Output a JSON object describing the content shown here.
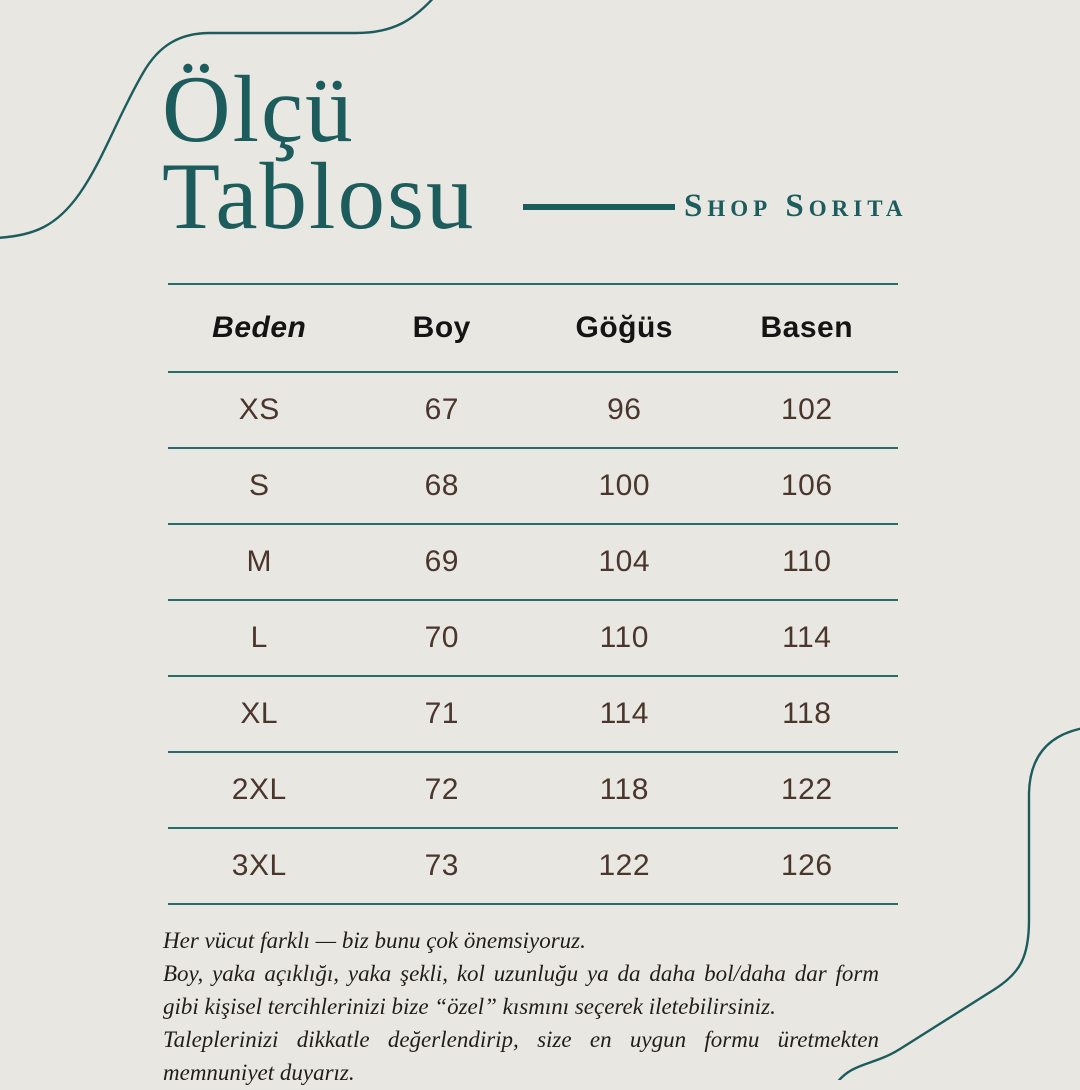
{
  "page": {
    "background_color": "#E9E7E2",
    "accent_color": "#1C5C5E",
    "table_line_color": "#2A6B6C",
    "data_text_color": "#4A362C",
    "header_text_color": "#141414"
  },
  "header": {
    "title_line1": "Ölçü",
    "title_line2": "Tablosu",
    "brand": "Shop Sorita"
  },
  "table": {
    "columns": [
      "Beden",
      "Boy",
      "Göğüs",
      "Basen"
    ],
    "rows": [
      [
        "XS",
        "67",
        "96",
        "102"
      ],
      [
        "S",
        "68",
        "100",
        "106"
      ],
      [
        "M",
        "69",
        "104",
        "110"
      ],
      [
        "L",
        "70",
        "110",
        "114"
      ],
      [
        "XL",
        "71",
        "114",
        "118"
      ],
      [
        "2XL",
        "72",
        "118",
        "122"
      ],
      [
        "3XL",
        "73",
        "122",
        "126"
      ]
    ]
  },
  "footer": {
    "paragraphs": [
      "Her vücut farklı — biz bunu çok önemsiyoruz.",
      "Boy, yaka açıklığı, yaka şekli, kol uzunluğu ya da daha bol/daha dar form gibi kişisel tercihlerinizi bize “özel” kısmını seçerek iletebilirsiniz.",
      "Taleplerinizi dikkatle değerlendirip, size en uygun formu üretmekten memnuniyet duyarız."
    ]
  }
}
